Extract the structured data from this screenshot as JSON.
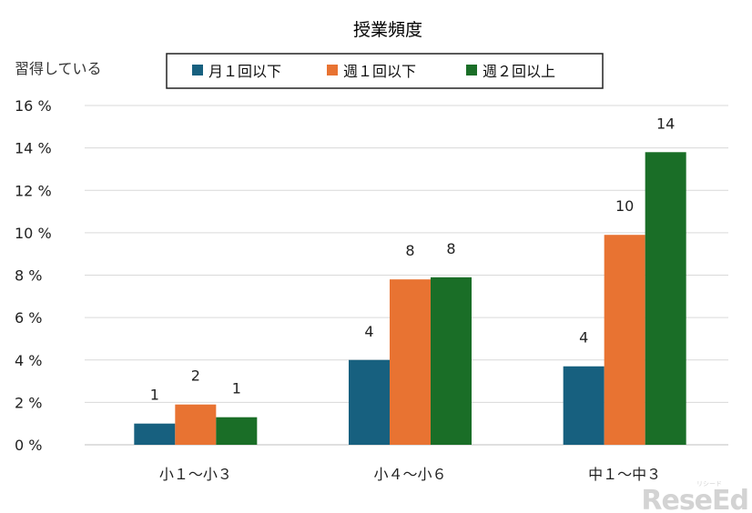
{
  "chart_data": {
    "type": "bar",
    "title": "授業頻度",
    "ylabel": "習得している",
    "categories": [
      "小１～小３",
      "小４～小６",
      "中１～中３"
    ],
    "series": [
      {
        "name": "月１回以下",
        "color": "#17607f",
        "values": [
          1,
          4,
          3.7
        ],
        "labels": [
          "1",
          "4",
          "4"
        ]
      },
      {
        "name": "週１回以下",
        "color": "#e87332",
        "values": [
          1.9,
          7.8,
          9.9
        ],
        "labels": [
          "2",
          "8",
          "10"
        ]
      },
      {
        "name": "週２回以上",
        "color": "#1a6e27",
        "values": [
          1.3,
          7.9,
          13.8
        ],
        "labels": [
          "1",
          "8",
          "14"
        ]
      }
    ],
    "ylim": [
      0,
      16
    ],
    "yticks": [
      "0 %",
      "2 %",
      "4 %",
      "6 %",
      "8 %",
      "10 %",
      "12 %",
      "14 %",
      "16 %"
    ],
    "grid": true,
    "legend_position": "top"
  },
  "watermark": {
    "logo_text": "ReseEd",
    "small_text": "リシード"
  }
}
